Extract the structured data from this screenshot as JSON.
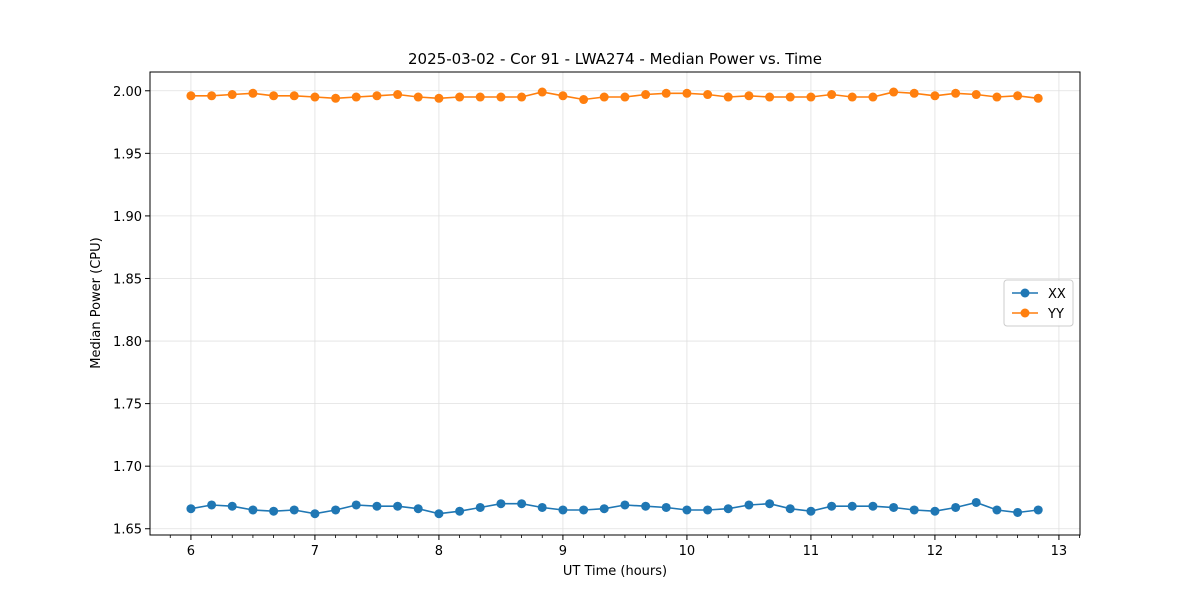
{
  "chart_data": {
    "type": "line",
    "title": "2025-03-02 - Cor 91 - LWA274 - Median Power vs. Time",
    "xlabel": "UT Time (hours)",
    "ylabel": "Median Power (CPU)",
    "xlim": [
      5.67,
      13.17
    ],
    "ylim": [
      1.645,
      2.015
    ],
    "xticks": [
      6,
      7,
      8,
      9,
      10,
      11,
      12,
      13
    ],
    "yticks": [
      1.65,
      1.7,
      1.75,
      1.8,
      1.85,
      1.9,
      1.95,
      2.0
    ],
    "grid": true,
    "legend_position": "center-right",
    "x": [
      6.0,
      6.167,
      6.333,
      6.5,
      6.667,
      6.833,
      7.0,
      7.167,
      7.333,
      7.5,
      7.667,
      7.833,
      8.0,
      8.167,
      8.333,
      8.5,
      8.667,
      8.833,
      9.0,
      9.167,
      9.333,
      9.5,
      9.667,
      9.833,
      10.0,
      10.167,
      10.333,
      10.5,
      10.667,
      10.833,
      11.0,
      11.167,
      11.333,
      11.5,
      11.667,
      11.833,
      12.0,
      12.167,
      12.333,
      12.5,
      12.667,
      12.833
    ],
    "series": [
      {
        "name": "XX",
        "color": "#1f77b4",
        "values": [
          1.666,
          1.669,
          1.668,
          1.665,
          1.664,
          1.665,
          1.662,
          1.665,
          1.669,
          1.668,
          1.668,
          1.666,
          1.662,
          1.664,
          1.667,
          1.67,
          1.67,
          1.667,
          1.665,
          1.665,
          1.666,
          1.669,
          1.668,
          1.667,
          1.665,
          1.665,
          1.666,
          1.669,
          1.67,
          1.666,
          1.664,
          1.668,
          1.668,
          1.668,
          1.667,
          1.665,
          1.664,
          1.667,
          1.671,
          1.665,
          1.663,
          1.665
        ]
      },
      {
        "name": "YY",
        "color": "#ff7f0e",
        "values": [
          1.996,
          1.996,
          1.997,
          1.998,
          1.996,
          1.996,
          1.995,
          1.994,
          1.995,
          1.996,
          1.997,
          1.995,
          1.994,
          1.995,
          1.995,
          1.995,
          1.995,
          1.999,
          1.996,
          1.993,
          1.995,
          1.995,
          1.997,
          1.998,
          1.998,
          1.997,
          1.995,
          1.996,
          1.995,
          1.995,
          1.995,
          1.997,
          1.995,
          1.995,
          1.999,
          1.998,
          1.996,
          1.998,
          1.997,
          1.995,
          1.996,
          1.994
        ]
      }
    ]
  }
}
